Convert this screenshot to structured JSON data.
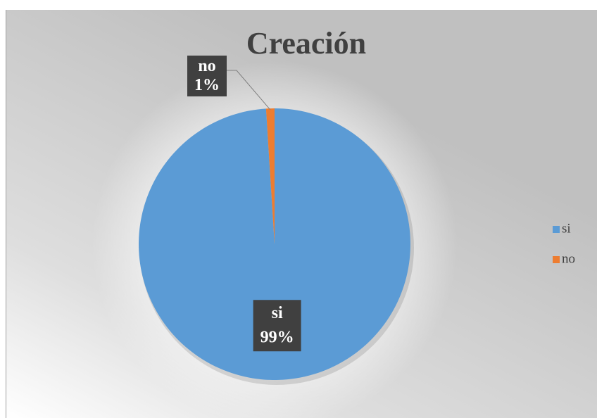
{
  "chart_data": {
    "type": "pie",
    "title": "Creación",
    "categories": [
      "si",
      "no"
    ],
    "values": [
      99,
      1
    ],
    "value_labels": [
      "99%",
      "1%"
    ],
    "colors": [
      "#5b9bd5",
      "#ed7d31"
    ],
    "legend": "right"
  }
}
